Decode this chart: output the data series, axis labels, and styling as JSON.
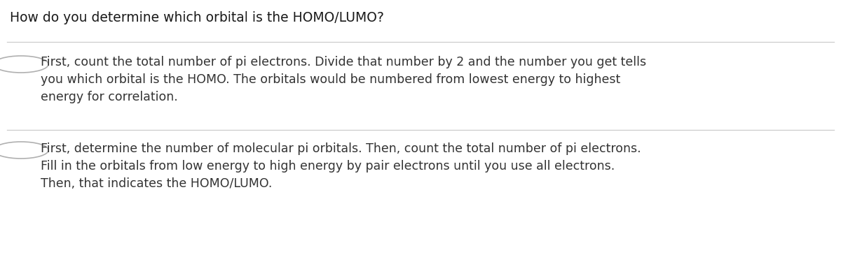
{
  "title": "How do you determine which orbital is the HOMO/LUMO?",
  "title_fontsize": 13.5,
  "title_color": "#1a1a1a",
  "background_color": "#ffffff",
  "divider_color": "#cccccc",
  "circle_color": "#b0b0b0",
  "text_color": "#333333",
  "option1_lines": [
    "First, count the total number of pi electrons. Divide that number by 2 and the number you get tells",
    "you which orbital is the HOMO. The orbitals would be numbered from lowest energy to highest",
    "energy for correlation."
  ],
  "option2_lines": [
    "First, determine the number of molecular pi orbitals. Then, count the total number of pi electrons.",
    "Fill in the orbitals from low energy to high energy by pair electrons until you use all electrons.",
    "Then, that indicates the HOMO/LUMO."
  ],
  "option_fontsize": 12.5,
  "figwidth": 12.0,
  "figheight": 3.68,
  "dpi": 100
}
